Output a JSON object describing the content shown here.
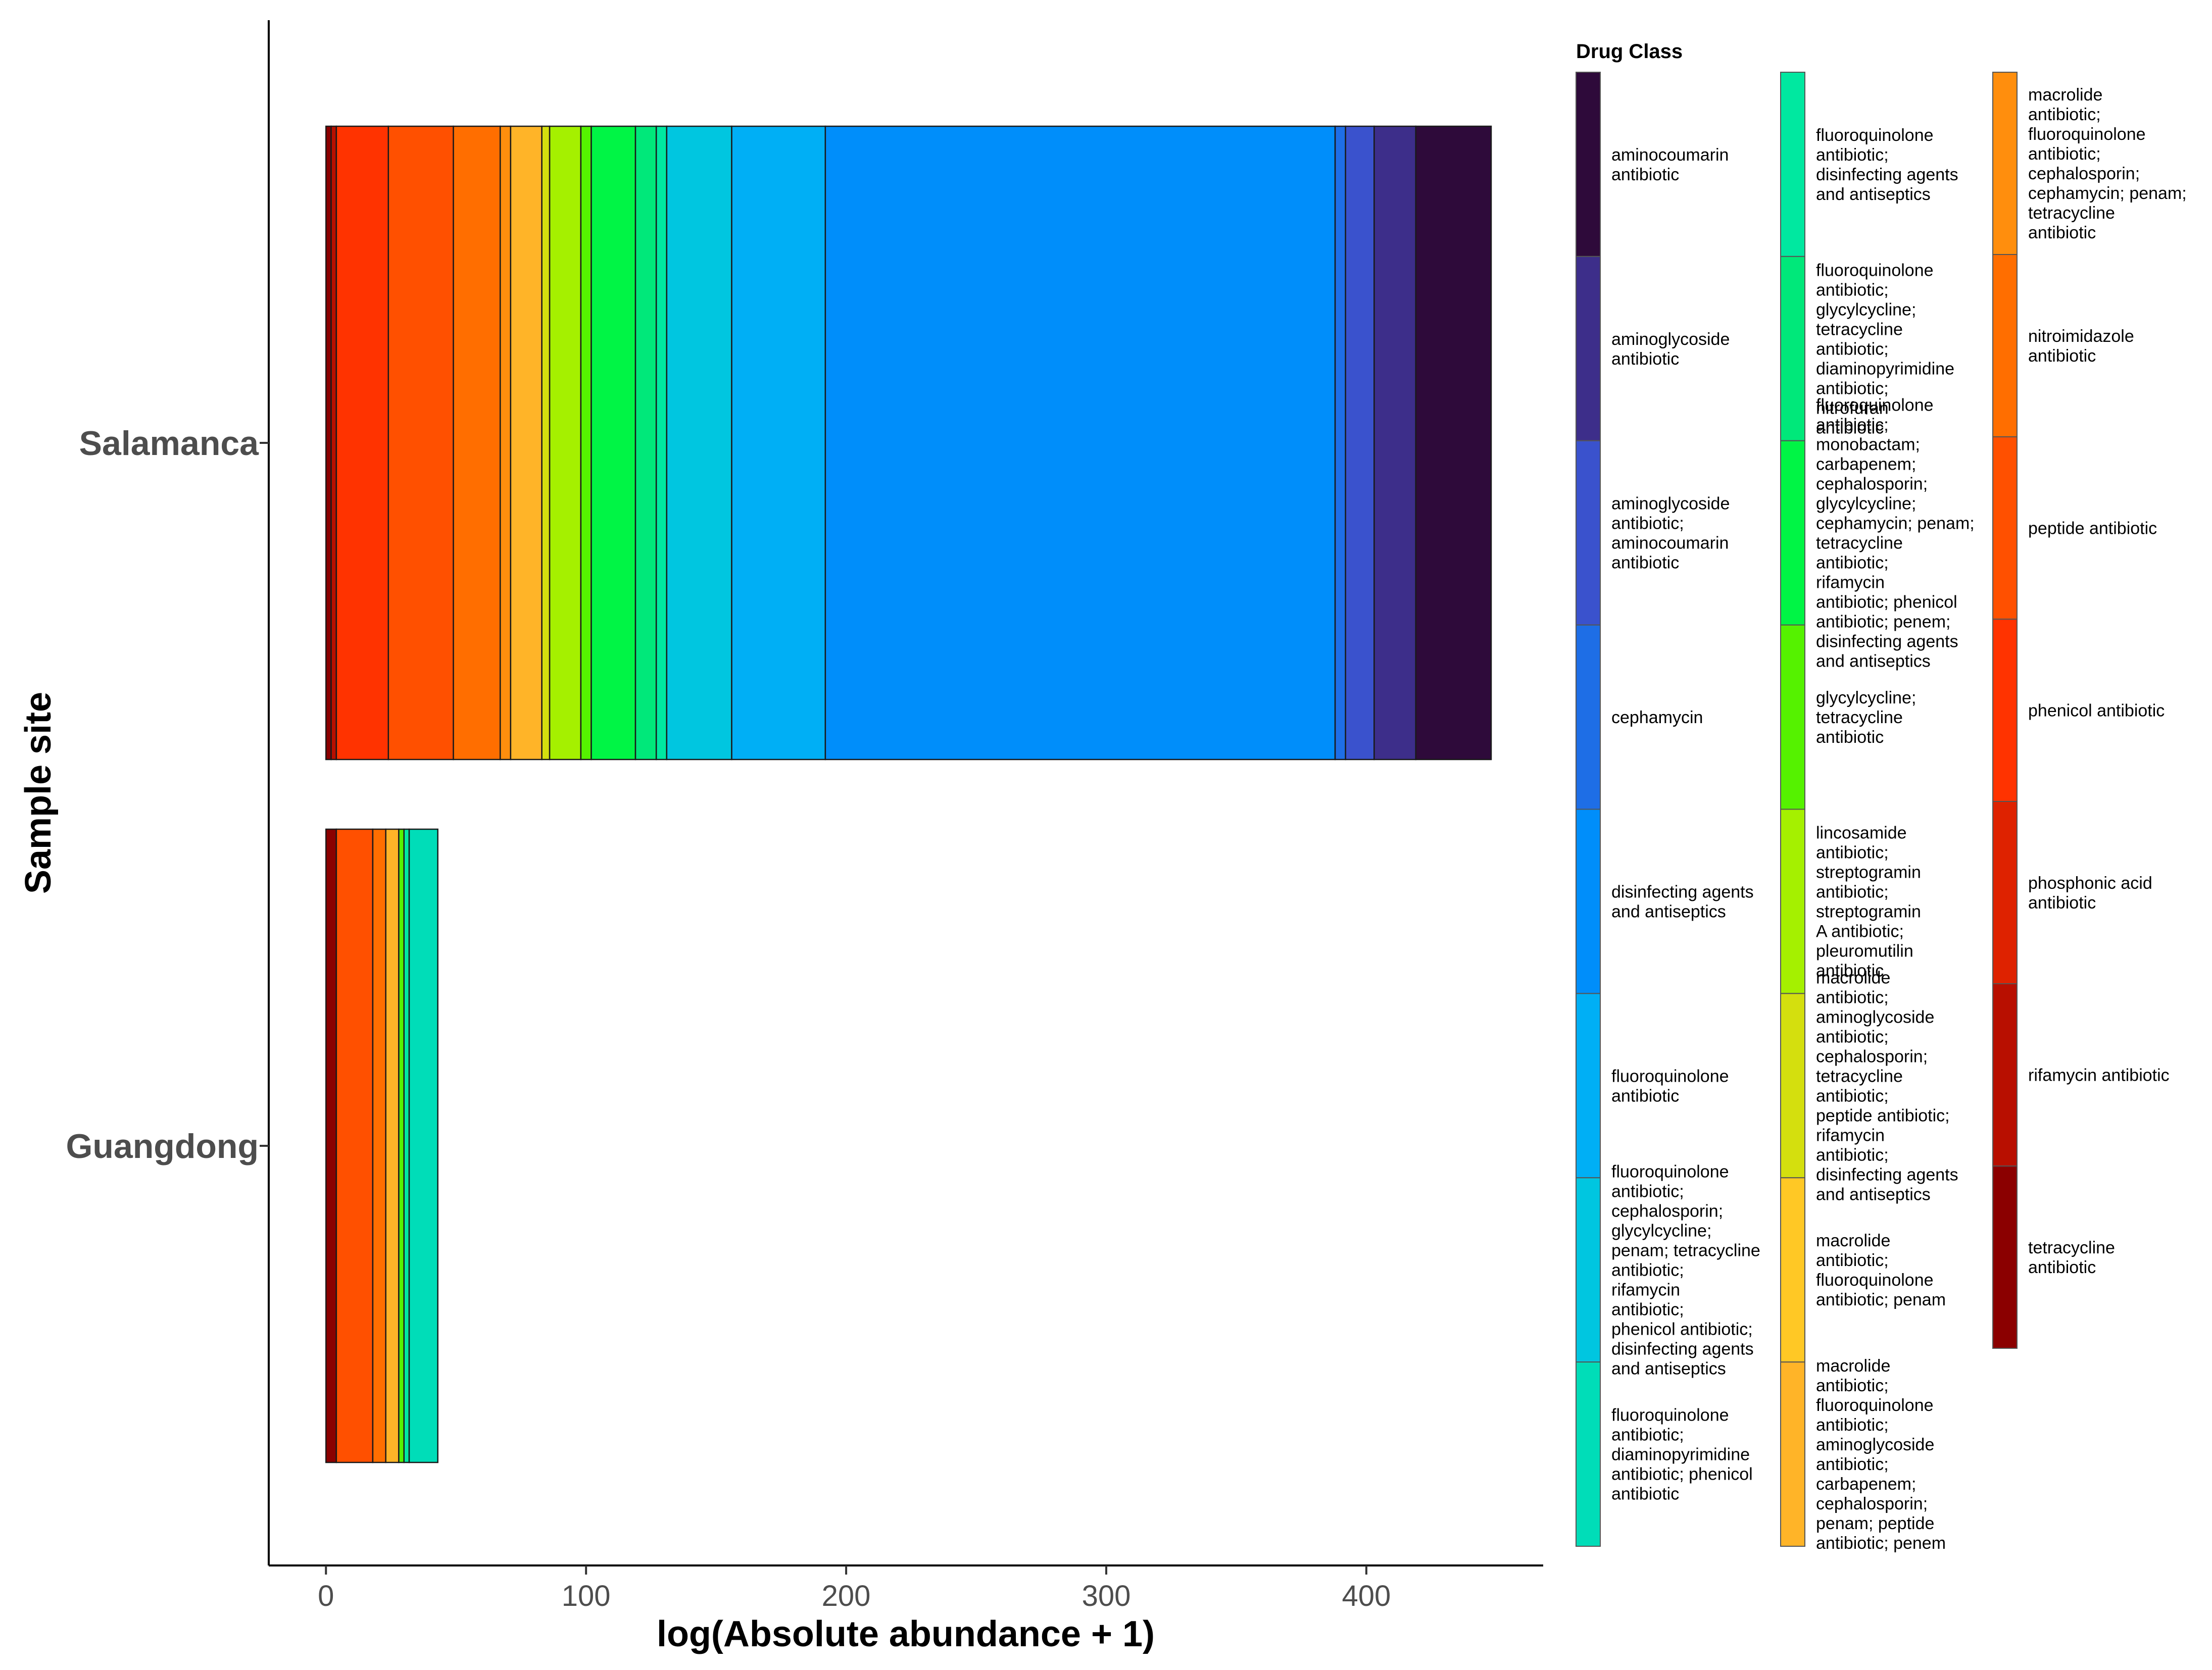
{
  "chart_data": {
    "type": "bar",
    "orientation": "horizontal",
    "stacked": true,
    "xlabel": "log(Absolute abundance + 1)",
    "ylabel": "Sample site",
    "xlim": [
      -22,
      468
    ],
    "xticks": [
      0,
      100,
      200,
      300,
      400
    ],
    "categories": [
      "Salamanca",
      "Guangdong"
    ],
    "legend": {
      "title": "Drug Class",
      "placement": "right",
      "columns": 3
    },
    "series": [
      {
        "name": "tetracycline antibiotic",
        "color": "#8B0000",
        "values": [
          2,
          4
        ]
      },
      {
        "name": "rifamycin antibiotic",
        "color": "#B80F00",
        "values": [
          2,
          0
        ]
      },
      {
        "name": "phosphonic acid antibiotic",
        "color": "#DE2200",
        "values": [
          0,
          0
        ]
      },
      {
        "name": "phenicol antibiotic",
        "color": "#FF3300",
        "values": [
          20,
          0
        ]
      },
      {
        "name": "peptide antibiotic",
        "color": "#FF5000",
        "values": [
          25,
          14
        ]
      },
      {
        "name": "nitroimidazole antibiotic",
        "color": "#FF6E00",
        "values": [
          18,
          5
        ]
      },
      {
        "name": "macrolide antibiotic; fluoroquinolone antibiotic; cephalosporin; cephamycin; penam; tetracycline antibiotic",
        "color": "#FF8E0D",
        "values": [
          4,
          0
        ]
      },
      {
        "name": "macrolide antibiotic; fluoroquinolone antibiotic; aminoglycoside antibiotic; carbapenem; cephalosporin; penam; peptide antibiotic; penem",
        "color": "#FFB428",
        "values": [
          12,
          5
        ]
      },
      {
        "name": "macrolide antibiotic; fluoroquinolone antibiotic; penam",
        "color": "#FFC825",
        "values": [
          0,
          0
        ]
      },
      {
        "name": "macrolide antibiotic; aminoglycoside antibiotic; cephalosporin; tetracycline antibiotic; peptide antibiotic; rifamycin antibiotic; disinfecting agents and antiseptics",
        "color": "#D4DF0E",
        "values": [
          3,
          0
        ]
      },
      {
        "name": "lincosamide antibiotic; streptogramin antibiotic; streptogramin A antibiotic; pleuromutilin antibiotic",
        "color": "#A5F000",
        "values": [
          12,
          0
        ]
      },
      {
        "name": "glycylcycline; tetracycline antibiotic",
        "color": "#55F200",
        "values": [
          4,
          2
        ]
      },
      {
        "name": "fluoroquinolone antibiotic; monobactam; carbapenem; cephalosporin; glycylcycline; cephamycin; penam; tetracycline antibiotic; rifamycin antibiotic; phenicol antibiotic; penem; disinfecting agents and antiseptics",
        "color": "#00F545",
        "values": [
          17,
          0
        ]
      },
      {
        "name": "fluoroquinolone antibiotic; glycylcycline; tetracycline antibiotic; diaminopyrimidine antibiotic; nitrofuran antibiotic",
        "color": "#00E87A",
        "values": [
          8,
          0
        ]
      },
      {
        "name": "fluoroquinolone antibiotic; disinfecting agents and antiseptics",
        "color": "#00E8A0",
        "values": [
          4,
          2
        ]
      },
      {
        "name": "fluoroquinolone antibiotic; diaminopyrimidine antibiotic; phenicol antibiotic",
        "color": "#00DDB8",
        "values": [
          0,
          11
        ]
      },
      {
        "name": "fluoroquinolone antibiotic; cephalosporin; glycylcycline; penam; tetracycline antibiotic; rifamycin antibiotic; phenicol antibiotic; disinfecting agents and antiseptics",
        "color": "#00C6E0",
        "values": [
          25,
          0
        ]
      },
      {
        "name": "fluoroquinolone antibiotic",
        "color": "#00AFF5",
        "values": [
          36,
          0
        ]
      },
      {
        "name": "disinfecting agents and antiseptics",
        "color": "#008EFA",
        "values": [
          196,
          0
        ]
      },
      {
        "name": "cephamycin",
        "color": "#1E6EE6",
        "values": [
          4,
          0
        ]
      },
      {
        "name": "aminoglycoside antibiotic; aminocoumarin antibiotic",
        "color": "#3A52CD",
        "values": [
          11,
          0
        ]
      },
      {
        "name": "aminoglycoside antibiotic",
        "color": "#3D2E8A",
        "values": [
          16,
          0
        ]
      },
      {
        "name": "aminocoumarin antibiotic",
        "color": "#2E0A3A",
        "values": [
          29,
          0
        ]
      }
    ]
  },
  "legend_columns": [
    [
      {
        "label": "aminocoumarin\nantibiotic",
        "color": "#2E0A3A"
      },
      {
        "label": "aminoglycoside\nantibiotic",
        "color": "#3D2E8A"
      },
      {
        "label": "aminoglycoside\nantibiotic;\naminocoumarin\nantibiotic",
        "color": "#3A52CD"
      },
      {
        "label": "cephamycin",
        "color": "#1E6EE6"
      },
      {
        "label": "disinfecting agents\nand antiseptics",
        "color": "#008EFA"
      },
      {
        "label": "fluoroquinolone\nantibiotic",
        "color": "#00AFF5"
      },
      {
        "label": "fluoroquinolone\nantibiotic;\ncephalosporin;\nglycylcycline;\npenam; tetracycline\nantibiotic;\nrifamycin\nantibiotic;\nphenicol antibiotic;\ndisinfecting agents\nand antiseptics",
        "color": "#00C6E0"
      },
      {
        "label": "fluoroquinolone\nantibiotic;\ndiaminopyrimidine\nantibiotic; phenicol\nantibiotic",
        "color": "#00DDB8"
      }
    ],
    [
      {
        "label": "fluoroquinolone\nantibiotic;\ndisinfecting agents\nand antiseptics",
        "color": "#00E8A0"
      },
      {
        "label": "fluoroquinolone\nantibiotic;\nglycylcycline;\ntetracycline\nantibiotic;\ndiaminopyrimidine\nantibiotic;\nnitrofuran\nantibiotic",
        "color": "#00E87A"
      },
      {
        "label": "fluoroquinolone\nantibiotic;\nmonobactam;\ncarbapenem;\ncephalosporin;\nglycylcycline;\ncephamycin; penam;\ntetracycline\nantibiotic;\nrifamycin\nantibiotic; phenicol\nantibiotic; penem;\ndisinfecting agents\nand antiseptics",
        "color": "#00F545"
      },
      {
        "label": "glycylcycline;\ntetracycline\nantibiotic",
        "color": "#55F200"
      },
      {
        "label": "lincosamide\nantibiotic;\nstreptogramin\nantibiotic;\nstreptogramin\nA antibiotic;\npleuromutilin\nantibiotic",
        "color": "#A5F000"
      },
      {
        "label": "macrolide\nantibiotic;\naminoglycoside\nantibiotic;\ncephalosporin;\ntetracycline\nantibiotic;\npeptide antibiotic;\nrifamycin\nantibiotic;\ndisinfecting agents\nand antiseptics",
        "color": "#D4DF0E"
      },
      {
        "label": "macrolide\nantibiotic;\nfluoroquinolone\nantibiotic; penam",
        "color": "#FFC825"
      },
      {
        "label": "macrolide\nantibiotic;\nfluoroquinolone\nantibiotic;\naminoglycoside\nantibiotic;\ncarbapenem;\ncephalosporin;\npenam; peptide\nantibiotic; penem",
        "color": "#FFB428"
      }
    ],
    [
      {
        "label": "macrolide\nantibiotic;\nfluoroquinolone\nantibiotic;\ncephalosporin;\ncephamycin; penam;\ntetracycline\nantibiotic",
        "color": "#FF8E0D"
      },
      {
        "label": "nitroimidazole\nantibiotic",
        "color": "#FF6E00"
      },
      {
        "label": "peptide antibiotic",
        "color": "#FF5000"
      },
      {
        "label": "phenicol antibiotic",
        "color": "#FF3300"
      },
      {
        "label": "phosphonic acid\nantibiotic",
        "color": "#DE2200"
      },
      {
        "label": "rifamycin antibiotic",
        "color": "#B80F00"
      },
      {
        "label": "tetracycline\nantibiotic",
        "color": "#8B0000"
      }
    ]
  ]
}
